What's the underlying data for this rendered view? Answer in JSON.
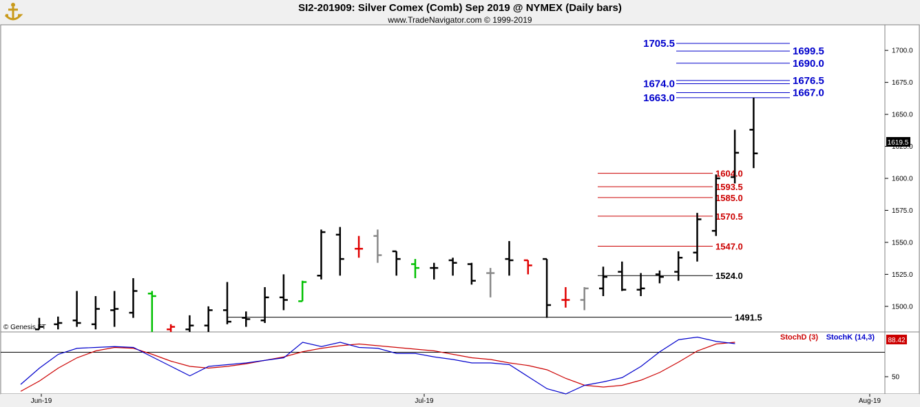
{
  "header": {
    "title": "SI2-201909:  Silver Comex (Comb) Sep 2019 @ NYMEX  (Daily bars)",
    "subtitle": "www.TradeNavigator.com © 1999-2019"
  },
  "watermark": "© Genesis FT",
  "colors": {
    "resistance": "#0000cc",
    "support": "#cc0000",
    "neutral": "#000000",
    "stoch_d": "#cc0000",
    "stoch_k": "#0000cc",
    "up_bar": "#000000",
    "green_bar": "#00c000",
    "red_bar": "#e00000",
    "gray_bar": "#888888"
  },
  "chart_data": [
    {
      "type": "ohlc",
      "name": "price",
      "ylim": [
        1480,
        1720
      ],
      "y_ticks": [
        "1500.0",
        "1525.0",
        "1550.0",
        "1575.0",
        "1600.0",
        "1625.0",
        "1650.0",
        "1675.0",
        "1700.0"
      ],
      "y_tick_values": [
        1500,
        1525,
        1550,
        1575,
        1600,
        1625,
        1650,
        1675,
        1700
      ],
      "x_ticks": [
        {
          "label": "Jun-19",
          "bar": 0
        },
        {
          "label": "Jul-19",
          "bar": 20
        },
        {
          "label": "Aug-19",
          "bar": 42
        }
      ],
      "last_price": "1619.5",
      "bars": [
        {
          "o": 1482,
          "h": 1491,
          "l": 1482,
          "c": 1484,
          "color": "up"
        },
        {
          "o": 1486,
          "h": 1492,
          "l": 1482,
          "c": 1487,
          "color": "up"
        },
        {
          "o": 1489,
          "h": 1512,
          "l": 1484,
          "c": 1487,
          "color": "up"
        },
        {
          "o": 1486,
          "h": 1508,
          "l": 1482,
          "c": 1498,
          "color": "up"
        },
        {
          "o": 1497,
          "h": 1512,
          "l": 1484,
          "c": 1498,
          "color": "up"
        },
        {
          "o": 1495,
          "h": 1522,
          "l": 1491,
          "c": 1512,
          "color": "up"
        },
        {
          "o": 1510,
          "h": 1512,
          "l": 1480,
          "c": 1508,
          "color": "green"
        },
        {
          "o": 1482,
          "h": 1486,
          "l": 1480,
          "c": 1484,
          "color": "red"
        },
        {
          "o": 1482,
          "h": 1493,
          "l": 1480,
          "c": 1485,
          "color": "up"
        },
        {
          "o": 1485,
          "h": 1500,
          "l": 1480,
          "c": 1497,
          "color": "up"
        },
        {
          "o": 1497,
          "h": 1519,
          "l": 1486,
          "c": 1488,
          "color": "up"
        },
        {
          "o": 1491,
          "h": 1496,
          "l": 1484,
          "c": 1490,
          "color": "up"
        },
        {
          "o": 1489,
          "h": 1515,
          "l": 1487,
          "c": 1507,
          "color": "up"
        },
        {
          "o": 1507,
          "h": 1525,
          "l": 1497,
          "c": 1505,
          "color": "up"
        },
        {
          "o": 1504,
          "h": 1520,
          "l": 1504,
          "c": 1519,
          "color": "green"
        },
        {
          "o": 1524,
          "h": 1560,
          "l": 1521,
          "c": 1558,
          "color": "up"
        },
        {
          "o": 1556,
          "h": 1562,
          "l": 1524,
          "c": 1537,
          "color": "up"
        },
        {
          "o": 1545,
          "h": 1555,
          "l": 1538,
          "c": 1545,
          "color": "red"
        },
        {
          "o": 1555,
          "h": 1560,
          "l": 1534,
          "c": 1540,
          "color": "gray"
        },
        {
          "o": 1543,
          "h": 1543,
          "l": 1524,
          "c": 1537,
          "color": "up"
        },
        {
          "o": 1533,
          "h": 1537,
          "l": 1522,
          "c": 1530,
          "color": "green"
        },
        {
          "o": 1530,
          "h": 1534,
          "l": 1521,
          "c": 1530,
          "color": "up"
        },
        {
          "o": 1536,
          "h": 1538,
          "l": 1524,
          "c": 1534,
          "color": "up"
        },
        {
          "o": 1533,
          "h": 1534,
          "l": 1517,
          "c": 1520,
          "color": "up"
        },
        {
          "o": 1526,
          "h": 1530,
          "l": 1507,
          "c": 1526,
          "color": "gray"
        },
        {
          "o": 1537,
          "h": 1551,
          "l": 1524,
          "c": 1536,
          "color": "up"
        },
        {
          "o": 1536,
          "h": 1536,
          "l": 1525,
          "c": 1532,
          "color": "red"
        },
        {
          "o": 1537,
          "h": 1537,
          "l": 1491,
          "c": 1501,
          "color": "up"
        },
        {
          "o": 1505,
          "h": 1515,
          "l": 1499,
          "c": 1505,
          "color": "red"
        },
        {
          "o": 1505,
          "h": 1515,
          "l": 1497,
          "c": 1514,
          "color": "gray"
        },
        {
          "o": 1514,
          "h": 1531,
          "l": 1508,
          "c": 1523,
          "color": "up"
        },
        {
          "o": 1527,
          "h": 1535,
          "l": 1512,
          "c": 1513,
          "color": "up"
        },
        {
          "o": 1513,
          "h": 1526,
          "l": 1508,
          "c": 1514,
          "color": "up"
        },
        {
          "o": 1525,
          "h": 1528,
          "l": 1518,
          "c": 1523,
          "color": "up"
        },
        {
          "o": 1527,
          "h": 1543,
          "l": 1520,
          "c": 1538,
          "color": "up"
        },
        {
          "o": 1542,
          "h": 1573,
          "l": 1535,
          "c": 1568,
          "color": "up"
        },
        {
          "o": 1559,
          "h": 1603,
          "l": 1555,
          "c": 1600,
          "color": "up"
        },
        {
          "o": 1601,
          "h": 1638,
          "l": 1596,
          "c": 1620,
          "color": "up"
        },
        {
          "o": 1638,
          "h": 1663,
          "l": 1608,
          "c": 1619.5,
          "color": "up"
        }
      ],
      "levels": {
        "resistance": [
          {
            "label": "1705.5",
            "value": 1705.5,
            "side": "left"
          },
          {
            "label": "1699.5",
            "value": 1699.5,
            "side": "right"
          },
          {
            "label": "1690.0",
            "value": 1690.0,
            "side": "right"
          },
          {
            "label": "1676.5",
            "value": 1676.5,
            "side": "right"
          },
          {
            "label": "1674.0",
            "value": 1674.0,
            "side": "left"
          },
          {
            "label": "1667.0",
            "value": 1667.0,
            "side": "right"
          },
          {
            "label": "1663.0",
            "value": 1663.0,
            "side": "left"
          }
        ],
        "support": [
          {
            "label": "1604.0",
            "value": 1604.0
          },
          {
            "label": "1593.5",
            "value": 1593.5
          },
          {
            "label": "1585.0",
            "value": 1585.0
          },
          {
            "label": "1570.5",
            "value": 1570.5
          },
          {
            "label": "1547.0",
            "value": 1547.0
          }
        ],
        "neutral": [
          {
            "label": "1524.0",
            "value": 1524.0
          },
          {
            "label": "1491.5",
            "value": 1491.5
          }
        ]
      }
    },
    {
      "type": "line",
      "name": "stochastic",
      "ylim": [
        30,
        102
      ],
      "y_ticks": [
        "50"
      ],
      "y_tick_values": [
        50
      ],
      "legend": [
        "StochD (3)",
        "StochK (14,3)"
      ],
      "last_value": "88.42",
      "series": [
        {
          "name": "StochD (3)",
          "values": [
            33,
            45,
            60,
            72,
            80,
            84,
            83,
            76,
            68,
            62,
            60,
            62,
            65,
            69,
            73,
            79,
            83,
            86,
            88,
            86,
            84,
            82,
            80,
            76,
            72,
            70,
            66,
            63,
            58,
            48,
            40,
            38,
            40,
            46,
            55,
            67,
            80,
            88,
            90
          ]
        },
        {
          "name": "StochK (14,3)",
          "values": [
            41,
            60,
            76,
            83,
            84,
            85,
            84,
            73,
            62,
            51,
            62,
            64,
            66,
            69,
            72,
            90,
            85,
            90,
            84,
            83,
            77,
            77,
            73,
            70,
            66,
            66,
            64,
            50,
            36,
            30,
            40,
            44,
            49,
            62,
            79,
            93,
            96,
            91,
            88.42
          ]
        }
      ]
    }
  ]
}
